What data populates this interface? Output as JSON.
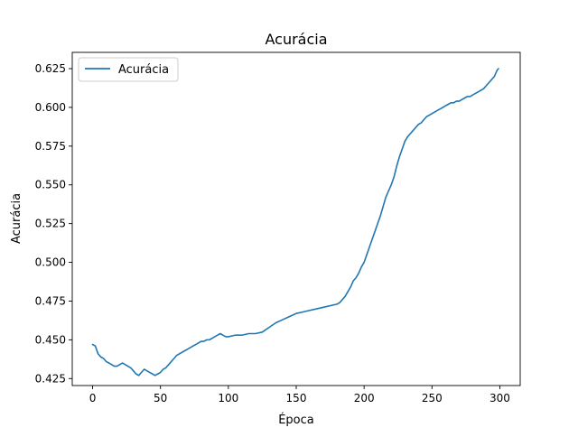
{
  "chart_data": {
    "type": "line",
    "title": "Acurácia",
    "xlabel": "Época",
    "ylabel": "Acurácia",
    "xlim": [
      -15,
      315
    ],
    "ylim": [
      0.4205,
      0.6355
    ],
    "xticks": [
      0,
      50,
      100,
      150,
      200,
      250,
      300
    ],
    "xtick_labels": [
      "0",
      "50",
      "100",
      "150",
      "200",
      "250",
      "300"
    ],
    "yticks": [
      0.425,
      0.45,
      0.475,
      0.5,
      0.525,
      0.55,
      0.575,
      0.6,
      0.625
    ],
    "ytick_labels": [
      "0.425",
      "0.450",
      "0.475",
      "0.500",
      "0.525",
      "0.550",
      "0.575",
      "0.600",
      "0.625"
    ],
    "grid": false,
    "legend": {
      "position": "top-left",
      "entries": [
        "Acurácia"
      ]
    },
    "series": [
      {
        "name": "Acurácia",
        "color": "#1f77b4",
        "x": [
          0,
          2,
          4,
          6,
          8,
          10,
          12,
          14,
          16,
          18,
          20,
          22,
          24,
          26,
          28,
          30,
          32,
          34,
          36,
          38,
          40,
          42,
          44,
          46,
          48,
          50,
          52,
          54,
          56,
          58,
          60,
          62,
          64,
          66,
          68,
          70,
          72,
          74,
          76,
          78,
          80,
          82,
          84,
          86,
          88,
          90,
          92,
          94,
          96,
          98,
          100,
          105,
          110,
          115,
          120,
          125,
          130,
          135,
          140,
          145,
          150,
          155,
          160,
          165,
          170,
          175,
          180,
          182,
          184,
          186,
          188,
          190,
          192,
          194,
          196,
          198,
          200,
          202,
          204,
          206,
          208,
          210,
          212,
          214,
          216,
          218,
          220,
          222,
          224,
          226,
          228,
          230,
          232,
          234,
          236,
          238,
          240,
          242,
          244,
          246,
          248,
          250,
          252,
          254,
          256,
          258,
          260,
          262,
          264,
          266,
          268,
          270,
          272,
          274,
          276,
          278,
          280,
          282,
          284,
          286,
          288,
          290,
          292,
          294,
          296,
          298,
          299
        ],
        "y": [
          0.447,
          0.446,
          0.441,
          0.439,
          0.438,
          0.436,
          0.435,
          0.434,
          0.433,
          0.433,
          0.434,
          0.435,
          0.434,
          0.433,
          0.432,
          0.43,
          0.428,
          0.427,
          0.429,
          0.431,
          0.43,
          0.429,
          0.428,
          0.427,
          0.428,
          0.429,
          0.431,
          0.432,
          0.434,
          0.436,
          0.438,
          0.44,
          0.441,
          0.442,
          0.443,
          0.444,
          0.445,
          0.446,
          0.447,
          0.448,
          0.449,
          0.449,
          0.45,
          0.45,
          0.451,
          0.452,
          0.453,
          0.454,
          0.453,
          0.452,
          0.452,
          0.453,
          0.453,
          0.454,
          0.454,
          0.455,
          0.458,
          0.461,
          0.463,
          0.465,
          0.467,
          0.468,
          0.469,
          0.47,
          0.471,
          0.472,
          0.473,
          0.474,
          0.476,
          0.478,
          0.481,
          0.484,
          0.488,
          0.49,
          0.493,
          0.497,
          0.5,
          0.505,
          0.51,
          0.515,
          0.52,
          0.525,
          0.53,
          0.536,
          0.542,
          0.546,
          0.55,
          0.555,
          0.562,
          0.568,
          0.573,
          0.578,
          0.581,
          0.583,
          0.585,
          0.587,
          0.589,
          0.59,
          0.592,
          0.594,
          0.595,
          0.596,
          0.597,
          0.598,
          0.599,
          0.6,
          0.601,
          0.602,
          0.603,
          0.603,
          0.604,
          0.604,
          0.605,
          0.606,
          0.607,
          0.607,
          0.608,
          0.609,
          0.61,
          0.611,
          0.612,
          0.614,
          0.616,
          0.618,
          0.62,
          0.624,
          0.625
        ]
      }
    ]
  }
}
